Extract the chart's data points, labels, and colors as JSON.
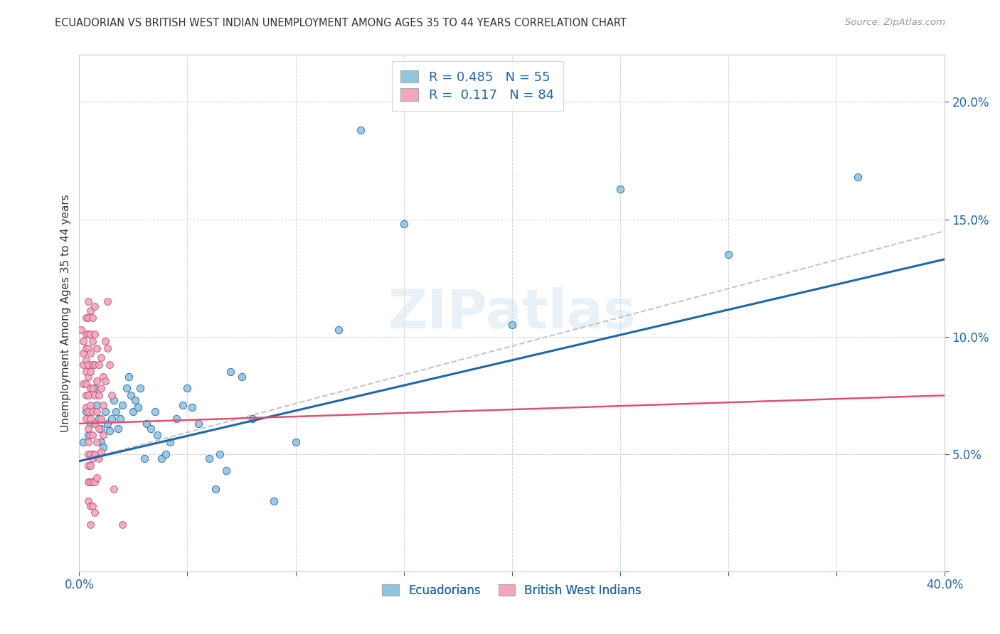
{
  "title": "ECUADORIAN VS BRITISH WEST INDIAN UNEMPLOYMENT AMONG AGES 35 TO 44 YEARS CORRELATION CHART",
  "source": "Source: ZipAtlas.com",
  "ylabel": "Unemployment Among Ages 35 to 44 years",
  "xlim": [
    0.0,
    0.4
  ],
  "ylim": [
    0.0,
    0.22
  ],
  "xticks": [
    0.0,
    0.05,
    0.1,
    0.15,
    0.2,
    0.25,
    0.3,
    0.35,
    0.4
  ],
  "yticks": [
    0.0,
    0.05,
    0.1,
    0.15,
    0.2
  ],
  "watermark": "ZIPatlas",
  "color_blue": "#92c5de",
  "color_pink": "#f4a6bc",
  "color_line_blue": "#2166ac",
  "color_line_pink": "#d6604d",
  "color_line_dashed": "#bbbbbb",
  "title_color": "#333333",
  "label_color_blue": "#2166ac",
  "blue_line_x": [
    0.0,
    0.4
  ],
  "blue_line_y": [
    0.047,
    0.133
  ],
  "pink_line_x": [
    0.0,
    0.4
  ],
  "pink_line_y": [
    0.063,
    0.075
  ],
  "dash_line_x": [
    0.0,
    0.4
  ],
  "dash_line_y": [
    0.047,
    0.145
  ],
  "blue_points": [
    [
      0.002,
      0.055
    ],
    [
      0.003,
      0.068
    ],
    [
      0.004,
      0.058
    ],
    [
      0.005,
      0.063
    ],
    [
      0.006,
      0.05
    ],
    [
      0.007,
      0.078
    ],
    [
      0.008,
      0.071
    ],
    [
      0.009,
      0.065
    ],
    [
      0.01,
      0.055
    ],
    [
      0.01,
      0.061
    ],
    [
      0.011,
      0.053
    ],
    [
      0.012,
      0.068
    ],
    [
      0.013,
      0.063
    ],
    [
      0.014,
      0.06
    ],
    [
      0.015,
      0.065
    ],
    [
      0.016,
      0.073
    ],
    [
      0.017,
      0.068
    ],
    [
      0.018,
      0.061
    ],
    [
      0.019,
      0.065
    ],
    [
      0.02,
      0.071
    ],
    [
      0.022,
      0.078
    ],
    [
      0.023,
      0.083
    ],
    [
      0.024,
      0.075
    ],
    [
      0.025,
      0.068
    ],
    [
      0.026,
      0.073
    ],
    [
      0.027,
      0.07
    ],
    [
      0.028,
      0.078
    ],
    [
      0.03,
      0.048
    ],
    [
      0.031,
      0.063
    ],
    [
      0.033,
      0.061
    ],
    [
      0.035,
      0.068
    ],
    [
      0.036,
      0.058
    ],
    [
      0.038,
      0.048
    ],
    [
      0.04,
      0.05
    ],
    [
      0.042,
      0.055
    ],
    [
      0.045,
      0.065
    ],
    [
      0.048,
      0.071
    ],
    [
      0.05,
      0.078
    ],
    [
      0.052,
      0.07
    ],
    [
      0.055,
      0.063
    ],
    [
      0.06,
      0.048
    ],
    [
      0.063,
      0.035
    ],
    [
      0.065,
      0.05
    ],
    [
      0.068,
      0.043
    ],
    [
      0.07,
      0.085
    ],
    [
      0.075,
      0.083
    ],
    [
      0.08,
      0.065
    ],
    [
      0.09,
      0.03
    ],
    [
      0.1,
      0.055
    ],
    [
      0.12,
      0.103
    ],
    [
      0.15,
      0.148
    ],
    [
      0.2,
      0.105
    ],
    [
      0.25,
      0.163
    ],
    [
      0.3,
      0.135
    ],
    [
      0.13,
      0.188
    ],
    [
      0.36,
      0.168
    ]
  ],
  "pink_points": [
    [
      0.001,
      0.103
    ],
    [
      0.002,
      0.098
    ],
    [
      0.002,
      0.093
    ],
    [
      0.002,
      0.088
    ],
    [
      0.002,
      0.08
    ],
    [
      0.003,
      0.108
    ],
    [
      0.003,
      0.101
    ],
    [
      0.003,
      0.095
    ],
    [
      0.003,
      0.09
    ],
    [
      0.003,
      0.085
    ],
    [
      0.003,
      0.08
    ],
    [
      0.003,
      0.075
    ],
    [
      0.003,
      0.07
    ],
    [
      0.003,
      0.065
    ],
    [
      0.004,
      0.115
    ],
    [
      0.004,
      0.108
    ],
    [
      0.004,
      0.101
    ],
    [
      0.004,
      0.095
    ],
    [
      0.004,
      0.088
    ],
    [
      0.004,
      0.083
    ],
    [
      0.004,
      0.075
    ],
    [
      0.004,
      0.068
    ],
    [
      0.004,
      0.061
    ],
    [
      0.004,
      0.055
    ],
    [
      0.004,
      0.05
    ],
    [
      0.004,
      0.045
    ],
    [
      0.004,
      0.038
    ],
    [
      0.004,
      0.03
    ],
    [
      0.005,
      0.111
    ],
    [
      0.005,
      0.101
    ],
    [
      0.005,
      0.093
    ],
    [
      0.005,
      0.085
    ],
    [
      0.005,
      0.078
    ],
    [
      0.005,
      0.071
    ],
    [
      0.005,
      0.065
    ],
    [
      0.005,
      0.058
    ],
    [
      0.005,
      0.05
    ],
    [
      0.005,
      0.045
    ],
    [
      0.005,
      0.038
    ],
    [
      0.005,
      0.028
    ],
    [
      0.005,
      0.02
    ],
    [
      0.006,
      0.108
    ],
    [
      0.006,
      0.098
    ],
    [
      0.006,
      0.088
    ],
    [
      0.006,
      0.078
    ],
    [
      0.006,
      0.068
    ],
    [
      0.006,
      0.058
    ],
    [
      0.006,
      0.048
    ],
    [
      0.006,
      0.038
    ],
    [
      0.006,
      0.028
    ],
    [
      0.007,
      0.113
    ],
    [
      0.007,
      0.101
    ],
    [
      0.007,
      0.088
    ],
    [
      0.007,
      0.075
    ],
    [
      0.007,
      0.063
    ],
    [
      0.007,
      0.05
    ],
    [
      0.007,
      0.038
    ],
    [
      0.007,
      0.025
    ],
    [
      0.008,
      0.095
    ],
    [
      0.008,
      0.081
    ],
    [
      0.008,
      0.068
    ],
    [
      0.008,
      0.055
    ],
    [
      0.008,
      0.04
    ],
    [
      0.009,
      0.088
    ],
    [
      0.009,
      0.075
    ],
    [
      0.009,
      0.061
    ],
    [
      0.009,
      0.048
    ],
    [
      0.01,
      0.091
    ],
    [
      0.01,
      0.078
    ],
    [
      0.01,
      0.065
    ],
    [
      0.01,
      0.051
    ],
    [
      0.011,
      0.083
    ],
    [
      0.011,
      0.071
    ],
    [
      0.011,
      0.058
    ],
    [
      0.012,
      0.098
    ],
    [
      0.012,
      0.081
    ],
    [
      0.013,
      0.115
    ],
    [
      0.013,
      0.095
    ],
    [
      0.014,
      0.088
    ],
    [
      0.015,
      0.075
    ],
    [
      0.016,
      0.035
    ],
    [
      0.02,
      0.02
    ]
  ]
}
